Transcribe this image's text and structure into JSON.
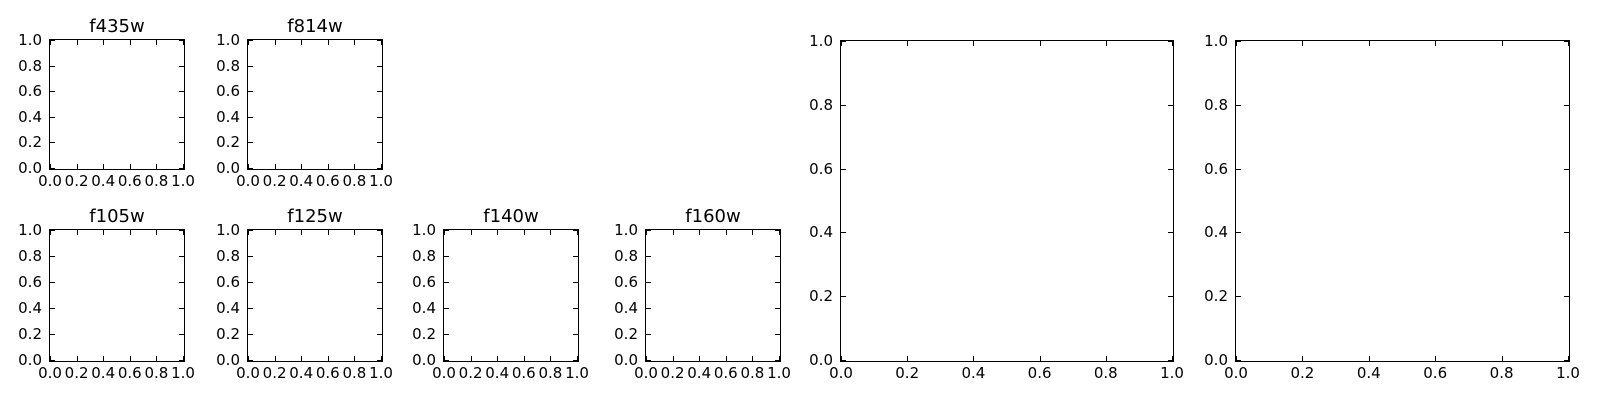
{
  "figure": {
    "background": "#ffffff",
    "axis_color": "#000000",
    "text_color": "#000000"
  },
  "chart_data": {
    "type": "empty-axes-grid",
    "grid": false,
    "legend": false,
    "tick_direction": "in",
    "ticks_on_all_sides": true,
    "panels": [
      {
        "id": "f435w",
        "title": "f435w",
        "row": 0,
        "col": 0,
        "size": "small",
        "xlim": [
          0.0,
          1.0
        ],
        "ylim": [
          0.0,
          1.0
        ],
        "x_tick_labels": [
          "0.0",
          "0.2",
          "0.4",
          "0.6",
          "0.8",
          "1.0"
        ],
        "y_tick_labels": [
          "0.0",
          "0.2",
          "0.4",
          "0.6",
          "0.8",
          "1.0"
        ],
        "series": []
      },
      {
        "id": "f814w",
        "title": "f814w",
        "row": 0,
        "col": 1,
        "size": "small",
        "xlim": [
          0.0,
          1.0
        ],
        "ylim": [
          0.0,
          1.0
        ],
        "x_tick_labels": [
          "0.0",
          "0.2",
          "0.4",
          "0.6",
          "0.8",
          "1.0"
        ],
        "y_tick_labels": [
          "0.0",
          "0.2",
          "0.4",
          "0.6",
          "0.8",
          "1.0"
        ],
        "series": []
      },
      {
        "id": "f105w",
        "title": "f105w",
        "row": 1,
        "col": 0,
        "size": "small",
        "xlim": [
          0.0,
          1.0
        ],
        "ylim": [
          0.0,
          1.0
        ],
        "x_tick_labels": [
          "0.0",
          "0.2",
          "0.4",
          "0.6",
          "0.8",
          "1.0"
        ],
        "y_tick_labels": [
          "0.0",
          "0.2",
          "0.4",
          "0.6",
          "0.8",
          "1.0"
        ],
        "series": []
      },
      {
        "id": "f125w",
        "title": "f125w",
        "row": 1,
        "col": 1,
        "size": "small",
        "xlim": [
          0.0,
          1.0
        ],
        "ylim": [
          0.0,
          1.0
        ],
        "x_tick_labels": [
          "0.0",
          "0.2",
          "0.4",
          "0.6",
          "0.8",
          "1.0"
        ],
        "y_tick_labels": [
          "0.0",
          "0.2",
          "0.4",
          "0.6",
          "0.8",
          "1.0"
        ],
        "series": []
      },
      {
        "id": "f140w",
        "title": "f140w",
        "row": 1,
        "col": 2,
        "size": "small",
        "xlim": [
          0.0,
          1.0
        ],
        "ylim": [
          0.0,
          1.0
        ],
        "x_tick_labels": [
          "0.0",
          "0.2",
          "0.4",
          "0.6",
          "0.8",
          "1.0"
        ],
        "y_tick_labels": [
          "0.0",
          "0.2",
          "0.4",
          "0.6",
          "0.8",
          "1.0"
        ],
        "series": []
      },
      {
        "id": "f160w",
        "title": "f160w",
        "row": 1,
        "col": 3,
        "size": "small",
        "xlim": [
          0.0,
          1.0
        ],
        "ylim": [
          0.0,
          1.0
        ],
        "x_tick_labels": [
          "0.0",
          "0.2",
          "0.4",
          "0.6",
          "0.8",
          "1.0"
        ],
        "y_tick_labels": [
          "0.0",
          "0.2",
          "0.4",
          "0.6",
          "0.8",
          "1.0"
        ],
        "series": []
      },
      {
        "id": "large-1",
        "title": "",
        "row": 0,
        "col": 4,
        "rowspan": 2,
        "size": "large",
        "xlim": [
          0.0,
          1.0
        ],
        "ylim": [
          0.0,
          1.0
        ],
        "x_tick_labels": [
          "0.0",
          "0.2",
          "0.4",
          "0.6",
          "0.8",
          "1.0"
        ],
        "y_tick_labels": [
          "0.0",
          "0.2",
          "0.4",
          "0.6",
          "0.8",
          "1.0"
        ],
        "series": []
      },
      {
        "id": "large-2",
        "title": "",
        "row": 0,
        "col": 5,
        "rowspan": 2,
        "size": "large",
        "xlim": [
          0.0,
          1.0
        ],
        "ylim": [
          0.0,
          1.0
        ],
        "x_tick_labels": [
          "0.0",
          "0.2",
          "0.4",
          "0.6",
          "0.8",
          "1.0"
        ],
        "y_tick_labels": [
          "0.0",
          "0.2",
          "0.4",
          "0.6",
          "0.8",
          "1.0"
        ],
        "series": []
      }
    ]
  }
}
